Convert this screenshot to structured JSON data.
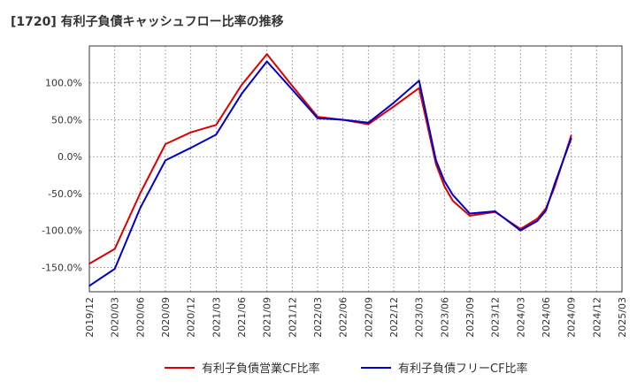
{
  "title": "[1720]  有利子負債キャッシュフロー比率の推移",
  "chart_data": {
    "type": "line",
    "title": "[1720]  有利子負債キャッシュフロー比率の推移",
    "xlabel": "",
    "ylabel": "",
    "y_unit": "%",
    "ylim": [
      -183,
      150
    ],
    "y_ticks": [
      -150,
      -100,
      -50,
      0,
      50,
      100
    ],
    "y_tick_labels": [
      "-150.0%",
      "-100.0%",
      "-50.0%",
      "0.0%",
      "50.0%",
      "100.0%"
    ],
    "x_tick_labels": [
      "2019/12",
      "2020/03",
      "2020/06",
      "2020/09",
      "2020/12",
      "2021/03",
      "2021/06",
      "2021/09",
      "2021/12",
      "2022/03",
      "2022/06",
      "2022/09",
      "2022/12",
      "2023/03",
      "2023/06",
      "2023/09",
      "2023/12",
      "2024/03",
      "2024/06",
      "2024/09",
      "2024/12",
      "2025/03"
    ],
    "grid": true,
    "legend_position": "bottom",
    "series": [
      {
        "name": "有利子負債営業CF比率",
        "color": "#dd0000",
        "x": [
          "2019/12",
          "2020/03",
          "2020/06",
          "2020/09",
          "2020/12",
          "2021/03",
          "2021/06",
          "2021/09",
          "2021/12",
          "2022/03",
          "2022/06",
          "2022/09",
          "2022/12",
          "2023/03",
          "2023/05",
          "2023/06",
          "2023/07",
          "2023/09",
          "2023/12",
          "2024/03",
          "2024/05",
          "2024/06",
          "2024/07",
          "2024/09"
        ],
        "values": [
          -145,
          -125,
          -50,
          17,
          33,
          43,
          97,
          139,
          96,
          54,
          50,
          44,
          68,
          93,
          -10,
          -40,
          -60,
          -80,
          -75,
          -98,
          -84,
          -70,
          -42,
          29
        ]
      },
      {
        "name": "有利子負債フリーCF比率",
        "color": "#0000cc",
        "x": [
          "2019/12",
          "2020/03",
          "2020/06",
          "2020/09",
          "2020/12",
          "2021/03",
          "2021/06",
          "2021/09",
          "2021/12",
          "2022/03",
          "2022/06",
          "2022/09",
          "2022/12",
          "2023/03",
          "2023/05",
          "2023/06",
          "2023/07",
          "2023/09",
          "2023/12",
          "2024/03",
          "2024/05",
          "2024/06",
          "2024/07",
          "2024/09"
        ],
        "values": [
          -175,
          -152,
          -70,
          -5,
          12,
          30,
          85,
          129,
          91,
          52,
          50,
          46,
          73,
          103,
          -5,
          -33,
          -52,
          -77,
          -74,
          -100,
          -87,
          -73,
          -38,
          25
        ]
      }
    ]
  }
}
